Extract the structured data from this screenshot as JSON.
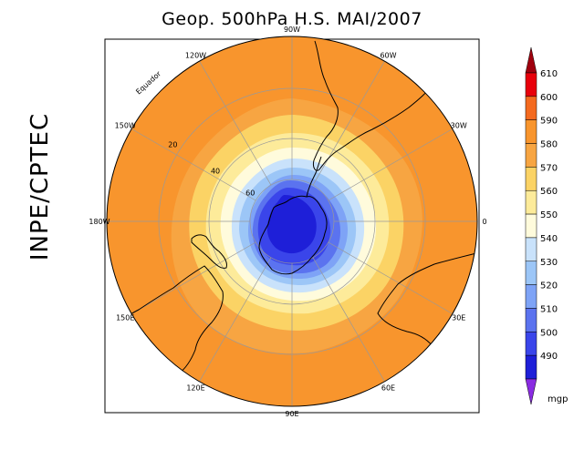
{
  "title": "Geop. 500hPa H.S. MAI/2007",
  "side_label": "INPE/CPTEC",
  "map": {
    "projection": "polar-stereographic-south",
    "longitude_labels": [
      {
        "text": "90W",
        "lon": -90
      },
      {
        "text": "60W",
        "lon": -60
      },
      {
        "text": "30W",
        "lon": -30
      },
      {
        "text": "0",
        "lon": 0
      },
      {
        "text": "30E",
        "lon": 30
      },
      {
        "text": "60E",
        "lon": 60
      },
      {
        "text": "90E",
        "lon": 90
      },
      {
        "text": "120E",
        "lon": 120
      },
      {
        "text": "150E",
        "lon": 150
      },
      {
        "text": "180W",
        "lon": 180
      },
      {
        "text": "150W",
        "lon": -150
      },
      {
        "text": "120W",
        "lon": -120
      }
    ],
    "latitude_labels": [
      {
        "text": "20",
        "lat": -20
      },
      {
        "text": "40",
        "lat": -40
      },
      {
        "text": "60",
        "lat": -60
      }
    ],
    "equator_label": "Equador",
    "colors": {
      "land_outline": "#000000",
      "graticule": "#999999"
    }
  },
  "colorbar": {
    "unit": "mgp",
    "levels": [
      {
        "value": "610",
        "color": "#e8000b"
      },
      {
        "value": "600",
        "color": "#f46a1f"
      },
      {
        "value": "590",
        "color": "#f8952d"
      },
      {
        "value": "580",
        "color": "#f7a542"
      },
      {
        "value": "570",
        "color": "#fbd365"
      },
      {
        "value": "560",
        "color": "#fdeb9a"
      },
      {
        "value": "550",
        "color": "#fffbdc"
      },
      {
        "value": "540",
        "color": "#c9e2fb"
      },
      {
        "value": "530",
        "color": "#9cc6f7"
      },
      {
        "value": "520",
        "color": "#7ea3f6"
      },
      {
        "value": "510",
        "color": "#5b73ef"
      },
      {
        "value": "500",
        "color": "#3a45ea"
      },
      {
        "value": "490",
        "color": "#1e1fd8"
      }
    ],
    "top_arrow_color": "#a0000e",
    "bottom_arrow_color": "#8a2be2"
  }
}
